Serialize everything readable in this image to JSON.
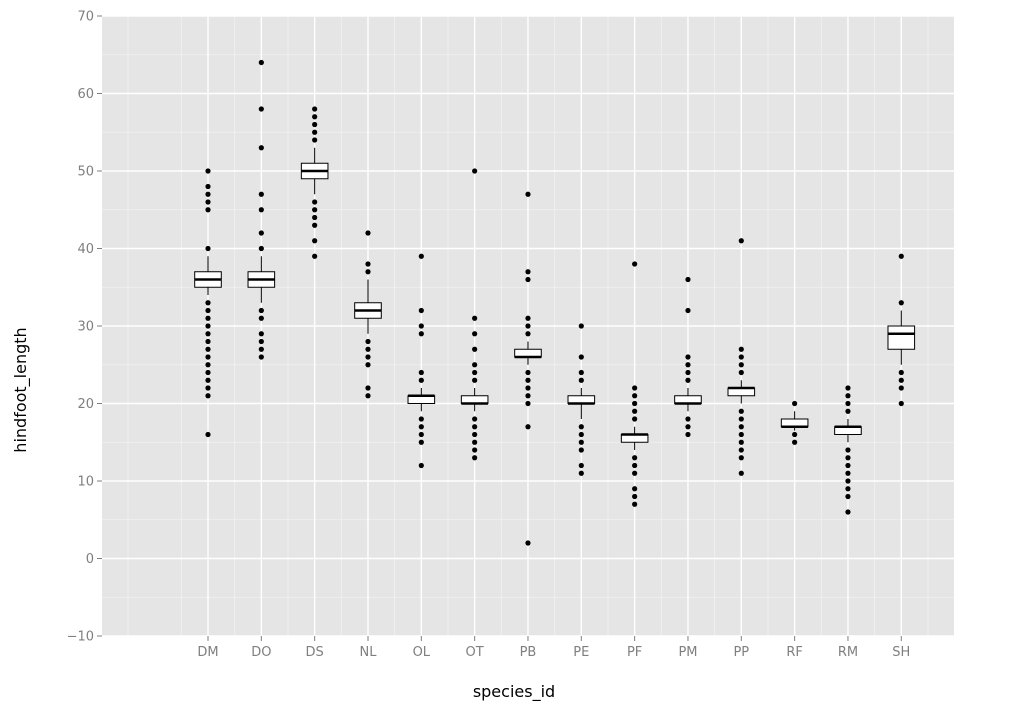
{
  "chart_data": {
    "type": "boxplot",
    "xlabel": "species_id",
    "ylabel": "hindfoot_length",
    "ylim": [
      -10,
      70
    ],
    "y_ticks": [
      -10,
      0,
      10,
      20,
      30,
      40,
      50,
      60,
      70
    ],
    "categories": [
      "DM",
      "DO",
      "DS",
      "NL",
      "OL",
      "OT",
      "PB",
      "PE",
      "PF",
      "PM",
      "PP",
      "RF",
      "RM",
      "SH"
    ],
    "grid": true,
    "colors": {
      "panel": "#e5e5e5",
      "grid_major": "#ffffff",
      "grid_minor": "#f2f2f2",
      "box_fill": "#ffffff",
      "box_line": "#000000"
    },
    "boxes": [
      {
        "category": "DM",
        "q1": 35,
        "median": 36,
        "q3": 37,
        "whisker_low": 34,
        "whisker_high": 39,
        "outliers": [
          16,
          21,
          22,
          23,
          24,
          25,
          26,
          27,
          28,
          29,
          30,
          31,
          32,
          33,
          40,
          45,
          46,
          47,
          48,
          50
        ]
      },
      {
        "category": "DO",
        "q1": 35,
        "median": 36,
        "q3": 37,
        "whisker_low": 33,
        "whisker_high": 39,
        "outliers": [
          26,
          27,
          28,
          29,
          31,
          32,
          40,
          42,
          45,
          47,
          53,
          58,
          64
        ]
      },
      {
        "category": "DS",
        "q1": 49,
        "median": 50,
        "q3": 51,
        "whisker_low": 47,
        "whisker_high": 53,
        "outliers": [
          39,
          41,
          43,
          44,
          45,
          46,
          54,
          55,
          56,
          57,
          58
        ]
      },
      {
        "category": "NL",
        "q1": 31,
        "median": 32,
        "q3": 33,
        "whisker_low": 29,
        "whisker_high": 36,
        "outliers": [
          21,
          22,
          25,
          26,
          27,
          28,
          37,
          38,
          42
        ]
      },
      {
        "category": "OL",
        "q1": 20,
        "median": 21,
        "q3": 21,
        "whisker_low": 19,
        "whisker_high": 22,
        "outliers": [
          12,
          15,
          16,
          17,
          18,
          23,
          24,
          29,
          30,
          32,
          39
        ]
      },
      {
        "category": "OT",
        "q1": 20,
        "median": 20,
        "q3": 21,
        "whisker_low": 19,
        "whisker_high": 22,
        "outliers": [
          13,
          14,
          15,
          16,
          17,
          18,
          23,
          24,
          25,
          27,
          29,
          31,
          50
        ]
      },
      {
        "category": "PB",
        "q1": 26,
        "median": 26,
        "q3": 27,
        "whisker_low": 25,
        "whisker_high": 28,
        "outliers": [
          2,
          17,
          20,
          21,
          22,
          23,
          24,
          29,
          30,
          31,
          36,
          37,
          47
        ]
      },
      {
        "category": "PE",
        "q1": 20,
        "median": 20,
        "q3": 21,
        "whisker_low": 18,
        "whisker_high": 22,
        "outliers": [
          11,
          12,
          14,
          15,
          16,
          17,
          23,
          24,
          26,
          30
        ]
      },
      {
        "category": "PF",
        "q1": 15,
        "median": 16,
        "q3": 16,
        "whisker_low": 14,
        "whisker_high": 17,
        "outliers": [
          7,
          8,
          9,
          11,
          12,
          13,
          18,
          19,
          20,
          21,
          22,
          38
        ]
      },
      {
        "category": "PM",
        "q1": 20,
        "median": 20,
        "q3": 21,
        "whisker_low": 19,
        "whisker_high": 22,
        "outliers": [
          16,
          17,
          18,
          23,
          24,
          25,
          26,
          32,
          36
        ]
      },
      {
        "category": "PP",
        "q1": 21,
        "median": 22,
        "q3": 22,
        "whisker_low": 20,
        "whisker_high": 23,
        "outliers": [
          11,
          13,
          14,
          15,
          16,
          17,
          18,
          19,
          24,
          25,
          26,
          27,
          41
        ]
      },
      {
        "category": "RF",
        "q1": 17,
        "median": 17,
        "q3": 18,
        "whisker_low": 16.5,
        "whisker_high": 19,
        "outliers": [
          15,
          16,
          20
        ]
      },
      {
        "category": "RM",
        "q1": 16,
        "median": 17,
        "q3": 17,
        "whisker_low": 15,
        "whisker_high": 18,
        "outliers": [
          6,
          8,
          9,
          10,
          11,
          12,
          13,
          14,
          19,
          20,
          21,
          22
        ]
      },
      {
        "category": "SH",
        "q1": 27,
        "median": 29,
        "q3": 30,
        "whisker_low": 25,
        "whisker_high": 32,
        "outliers": [
          20,
          22,
          23,
          24,
          33,
          39
        ]
      }
    ]
  }
}
